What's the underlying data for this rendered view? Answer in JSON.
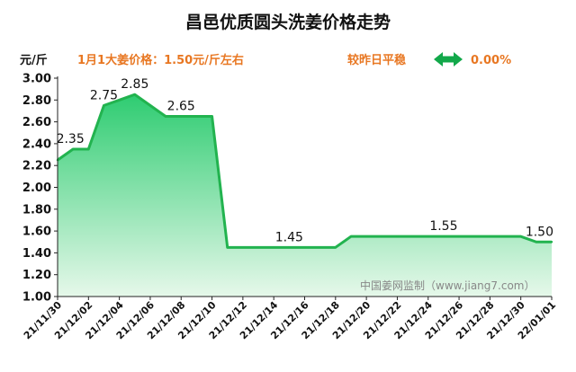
{
  "colors": {
    "accent_orange": "#e87722",
    "line_green": "#22b34f",
    "fill_top": "#2ecc71",
    "fill_bottom": "#e6f8ea",
    "arrow_green": "#12a84a"
  },
  "header": {
    "title": "昌邑优质圆头洗姜价格走势",
    "unit": "元/斤",
    "price_note": "1月1大姜价格：1.50元/斤左右",
    "change_label": "较昨日平稳",
    "change_icon": "left-right-arrow-icon",
    "change_value": "0.00%"
  },
  "watermark": "中国姜网监制（www.jiang7.com）",
  "chart_data": {
    "type": "area",
    "title": "昌邑优质圆头洗姜价格走势",
    "ylabel": "元/斤",
    "xlabel": "",
    "ylim": [
      1.0,
      3.0
    ],
    "y_ticks": [
      "1.00",
      "1.20",
      "1.40",
      "1.60",
      "1.80",
      "2.00",
      "2.20",
      "2.40",
      "2.60",
      "2.80",
      "3.00"
    ],
    "grid": false,
    "x": [
      "21/11/30",
      "21/12/01",
      "21/12/02",
      "21/12/03",
      "21/12/04",
      "21/12/05",
      "21/12/06",
      "21/12/07",
      "21/12/08",
      "21/12/09",
      "21/12/10",
      "21/12/11",
      "21/12/12",
      "21/12/13",
      "21/12/14",
      "21/12/15",
      "21/12/16",
      "21/12/17",
      "21/12/18",
      "21/12/19",
      "21/12/20",
      "21/12/21",
      "21/12/22",
      "21/12/23",
      "21/12/24",
      "21/12/25",
      "21/12/26",
      "21/12/27",
      "21/12/28",
      "21/12/29",
      "21/12/30",
      "21/12/31",
      "22/01/01"
    ],
    "x_tick_labels": [
      "21/11/30",
      "21/12/02",
      "21/12/04",
      "21/12/06",
      "21/12/08",
      "21/12/10",
      "21/12/12",
      "21/12/14",
      "21/12/16",
      "21/12/18",
      "21/12/20",
      "21/12/22",
      "21/12/24",
      "21/12/26",
      "21/12/28",
      "21/12/30",
      "22/01/01"
    ],
    "series": [
      {
        "values": [
          2.25,
          2.35,
          2.35,
          2.75,
          2.8,
          2.85,
          2.75,
          2.65,
          2.65,
          2.65,
          2.65,
          1.45,
          1.45,
          1.45,
          1.45,
          1.45,
          1.45,
          1.45,
          1.45,
          1.55,
          1.55,
          1.55,
          1.55,
          1.55,
          1.55,
          1.55,
          1.55,
          1.55,
          1.55,
          1.55,
          1.55,
          1.5,
          1.5
        ]
      }
    ],
    "data_labels": [
      {
        "index": 1,
        "text": "2.35"
      },
      {
        "index": 3,
        "text": "2.75"
      },
      {
        "index": 5,
        "text": "2.85"
      },
      {
        "index": 8,
        "text": "2.65"
      },
      {
        "index": 15,
        "text": "1.45"
      },
      {
        "index": 25,
        "text": "1.55"
      },
      {
        "index": 32,
        "text": "1.50"
      }
    ]
  }
}
